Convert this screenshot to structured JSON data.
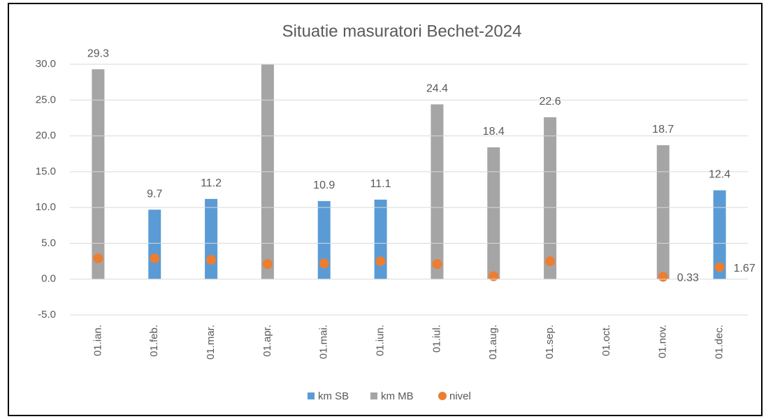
{
  "chart_data": {
    "type": "bar",
    "title": "Situatie masuratori Bechet-2024",
    "categories": [
      "01.ian.",
      "01.feb.",
      "01.mar.",
      "01.apr.",
      "01.mai.",
      "01.iun.",
      "01.iul.",
      "01.aug.",
      "01.sep.",
      "01.oct.",
      "01.nov.",
      "01.dec."
    ],
    "series": [
      {
        "name": "km SB",
        "color": "#5b9bd5",
        "kind": "bar",
        "values": [
          null,
          9.7,
          11.2,
          null,
          10.9,
          11.1,
          null,
          null,
          null,
          null,
          null,
          12.4
        ],
        "value_labels": [
          null,
          "9.7",
          "11.2",
          null,
          "10.9",
          "11.1",
          null,
          null,
          null,
          null,
          null,
          "12.4"
        ]
      },
      {
        "name": "km MB",
        "color": "#a5a5a5",
        "kind": "bar",
        "values": [
          29.3,
          null,
          null,
          30.8,
          null,
          null,
          24.4,
          18.4,
          22.6,
          null,
          18.7,
          null
        ],
        "value_labels": [
          "29.3",
          null,
          null,
          null,
          null,
          null,
          "24.4",
          "18.4",
          "22.6",
          null,
          "18.7",
          null
        ]
      },
      {
        "name": "nivel",
        "color": "#ed7d31",
        "kind": "dot",
        "values": [
          2.9,
          2.9,
          2.7,
          2.1,
          2.2,
          2.5,
          2.1,
          0.4,
          2.5,
          null,
          0.33,
          1.67
        ],
        "value_labels": [
          null,
          null,
          null,
          null,
          null,
          null,
          null,
          null,
          null,
          null,
          "0.33",
          "1.67"
        ]
      }
    ],
    "ylim": [
      -5,
      30
    ],
    "yticks": [
      {
        "value": -5,
        "label": "-5.0"
      },
      {
        "value": 0,
        "label": "0.0"
      },
      {
        "value": 5,
        "label": "5.0"
      },
      {
        "value": 10,
        "label": "10.0"
      },
      {
        "value": 15,
        "label": "15.0"
      },
      {
        "value": 20,
        "label": "20.0"
      },
      {
        "value": 25,
        "label": "25.0"
      },
      {
        "value": 30,
        "label": "30.0"
      }
    ],
    "grid": true,
    "legend": "bottom"
  }
}
